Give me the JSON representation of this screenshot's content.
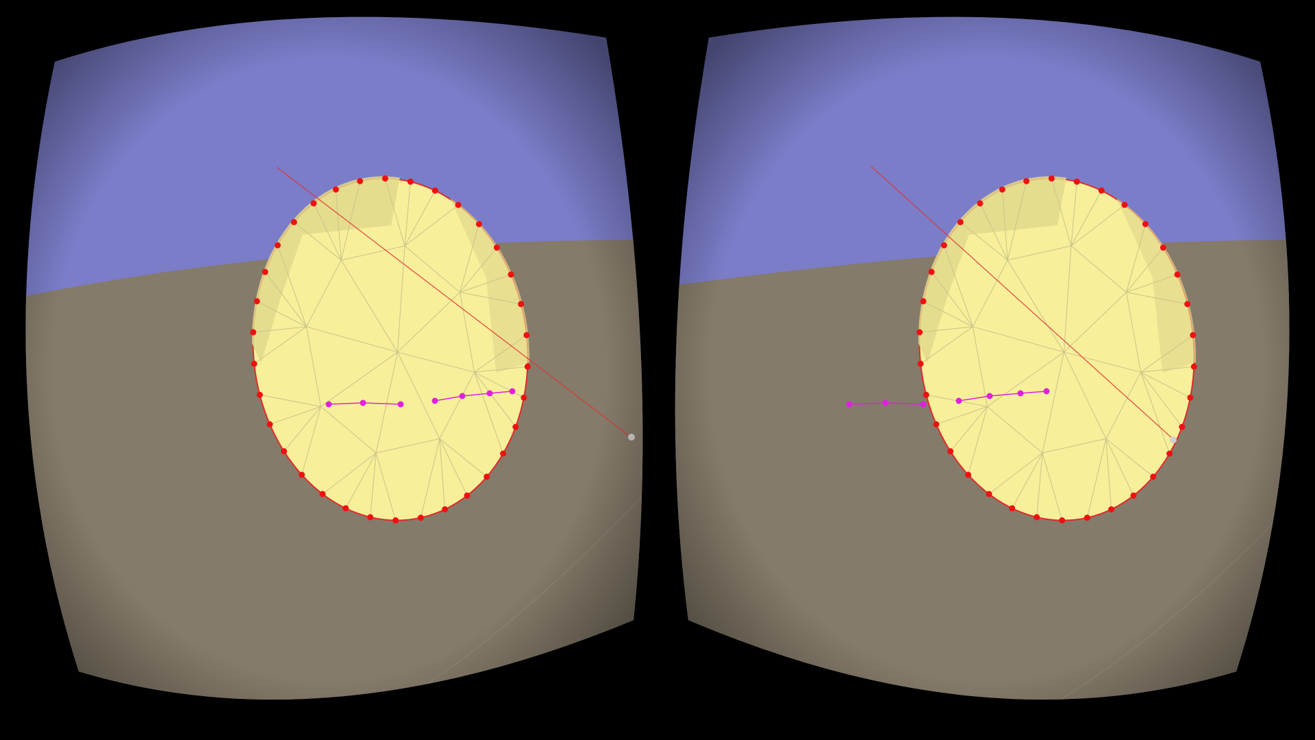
{
  "view": {
    "mode": "stereo-vr",
    "eyes": [
      "left",
      "right"
    ]
  },
  "scene": {
    "sky_color": "#7b7dc9",
    "ground_color": "#857b6a",
    "mesh_fill": "#f7ef9a",
    "mesh_shade": "#e2d98c",
    "mesh_edge": "#c9c38a",
    "outline_color": "#e02a2a",
    "vertex_marker_color": "#ee1111",
    "feature_marker_color": "#e020e0",
    "laser_color": "#e03333",
    "laser_tip_color": "#cfcfcf",
    "background_color": "#000000",
    "icons": [
      "mesh-object-icon",
      "vertex-marker-icon",
      "feature-marker-icon",
      "laser-pointer-icon"
    ]
  }
}
